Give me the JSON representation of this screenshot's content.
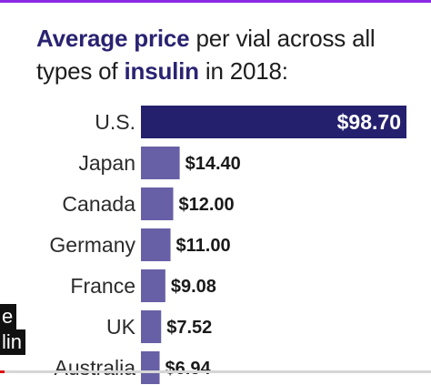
{
  "title": {
    "part1_bold": "Average price",
    "part2": " per vial across all types of ",
    "part3_bold": "insulin",
    "part4": " in 2018:"
  },
  "captions": [
    "e",
    "lin"
  ],
  "video": {
    "progress": 0.01
  },
  "colors": {
    "highlight": "#24206e",
    "bar": "#6760a6",
    "title_accent": "#2a2372",
    "progress": "#e01010"
  },
  "chart_data": {
    "type": "bar",
    "orientation": "horizontal",
    "title": "Average price per vial across all types of insulin in 2018:",
    "categories": [
      "U.S.",
      "Japan",
      "Canada",
      "Germany",
      "France",
      "UK",
      "Australia"
    ],
    "values": [
      98.7,
      14.4,
      12.0,
      11.0,
      9.08,
      7.52,
      6.94
    ],
    "value_labels": [
      "$98.70",
      "$14.40",
      "$12.00",
      "$11.00",
      "$9.08",
      "$7.52",
      "$6.94"
    ],
    "xlabel": "",
    "ylabel": "",
    "xlim": [
      0,
      98.7
    ],
    "grid": false
  }
}
